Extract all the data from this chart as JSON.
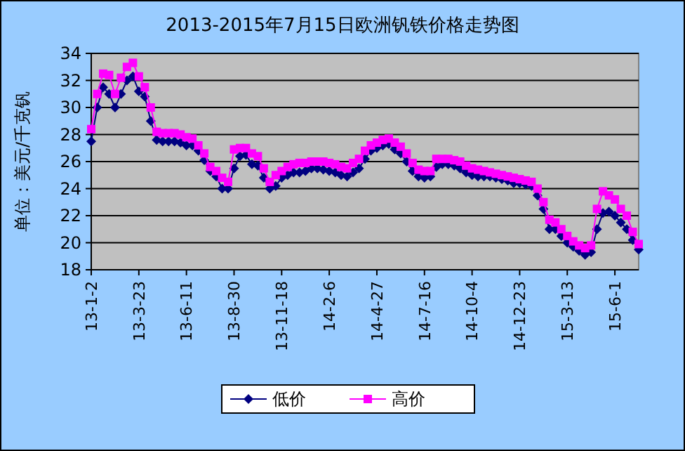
{
  "chart_data": {
    "type": "line",
    "title": "2013-2015年7月15日欧洲钒铁价格走势图",
    "ylabel": "单位：美元/千克钒",
    "categories": [
      "13-1-2",
      null,
      null,
      null,
      null,
      null,
      null,
      null,
      "13-3-23",
      null,
      null,
      null,
      null,
      null,
      null,
      null,
      "13-6-11",
      null,
      null,
      null,
      null,
      null,
      null,
      null,
      "13-8-30",
      null,
      null,
      null,
      null,
      null,
      null,
      null,
      "13-11-18",
      null,
      null,
      null,
      null,
      null,
      null,
      null,
      "14-2-6",
      null,
      null,
      null,
      null,
      null,
      null,
      null,
      "14-4-27",
      null,
      null,
      null,
      null,
      null,
      null,
      null,
      "14-7-16",
      null,
      null,
      null,
      null,
      null,
      null,
      null,
      "14-10-4",
      null,
      null,
      null,
      null,
      null,
      null,
      null,
      "14-12-23",
      null,
      null,
      null,
      null,
      null,
      null,
      null,
      "15-3-13",
      null,
      null,
      null,
      null,
      null,
      null,
      null,
      "15-6-1",
      null,
      null,
      null,
      null
    ],
    "series": [
      {
        "name": "低价",
        "color": "#000080",
        "marker": "diamond",
        "values": [
          27.5,
          30.0,
          31.5,
          31.0,
          30.0,
          31.0,
          32.0,
          32.3,
          31.2,
          30.8,
          29.0,
          27.6,
          27.5,
          27.5,
          27.5,
          27.4,
          27.2,
          27.2,
          26.8,
          26.1,
          25.3,
          24.9,
          24.0,
          24.0,
          25.5,
          26.4,
          26.5,
          25.8,
          25.7,
          24.8,
          24.0,
          24.2,
          24.8,
          25.0,
          25.2,
          25.2,
          25.3,
          25.5,
          25.5,
          25.4,
          25.3,
          25.2,
          25.0,
          24.9,
          25.2,
          25.5,
          26.2,
          26.8,
          27.0,
          27.2,
          27.3,
          26.9,
          26.6,
          26.0,
          25.3,
          24.9,
          24.8,
          24.9,
          25.6,
          25.8,
          25.8,
          25.7,
          25.5,
          25.2,
          25.0,
          24.9,
          24.9,
          24.9,
          24.8,
          24.7,
          24.6,
          24.4,
          24.4,
          24.3,
          24.2,
          23.5,
          22.5,
          21.0,
          21.0,
          20.5,
          20.0,
          19.7,
          19.4,
          19.1,
          19.3,
          21.0,
          22.2,
          22.3,
          22.0,
          21.5,
          21.0,
          20.2,
          19.5
        ]
      },
      {
        "name": "高价",
        "color": "#ff00ff",
        "marker": "square",
        "values": [
          28.4,
          31.0,
          32.5,
          32.4,
          31.0,
          32.2,
          33.0,
          33.3,
          32.3,
          31.5,
          30.0,
          28.2,
          28.1,
          28.1,
          28.1,
          28.0,
          27.8,
          27.7,
          27.2,
          26.6,
          25.6,
          25.3,
          24.8,
          24.5,
          26.9,
          27.0,
          27.0,
          26.6,
          26.4,
          25.5,
          24.5,
          25.0,
          25.3,
          25.6,
          25.8,
          25.9,
          25.9,
          26.0,
          26.0,
          26.0,
          25.9,
          25.8,
          25.6,
          25.5,
          25.9,
          26.2,
          26.8,
          27.2,
          27.4,
          27.6,
          27.7,
          27.4,
          27.1,
          26.6,
          25.9,
          25.4,
          25.3,
          25.3,
          26.2,
          26.2,
          26.2,
          26.1,
          26.0,
          25.7,
          25.5,
          25.4,
          25.3,
          25.2,
          25.1,
          25.0,
          24.9,
          24.8,
          24.7,
          24.6,
          24.5,
          24.0,
          23.0,
          21.7,
          21.5,
          21.0,
          20.5,
          20.1,
          19.8,
          19.6,
          19.8,
          22.5,
          23.8,
          23.5,
          23.2,
          22.5,
          22.0,
          20.8,
          19.9
        ]
      }
    ],
    "ylim": [
      18,
      34
    ],
    "yticks": [
      18,
      20,
      22,
      24,
      26,
      28,
      30,
      32,
      34
    ],
    "grid": "y",
    "legend": "bottom"
  }
}
